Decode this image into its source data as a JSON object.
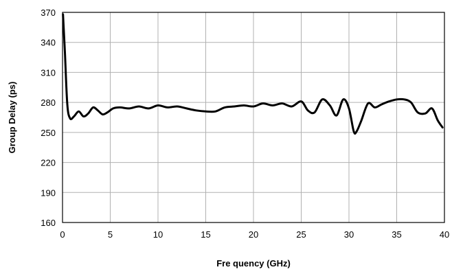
{
  "chart_data": {
    "type": "line",
    "title": "",
    "xlabel": "Fre quency (GHz)",
    "ylabel": "Group Delay (ps)",
    "xlim": [
      0,
      40
    ],
    "ylim": [
      160,
      370
    ],
    "xticks": [
      0,
      5,
      10,
      15,
      20,
      25,
      30,
      35,
      40
    ],
    "yticks": [
      160,
      190,
      220,
      250,
      280,
      310,
      340,
      370
    ],
    "grid": true,
    "legend": "none",
    "line_color": "#000000",
    "series": [
      {
        "x": [
          0.05,
          0.25,
          0.5,
          0.8,
          1.2,
          1.7,
          2.2,
          2.7,
          3.2,
          3.7,
          4.2,
          4.7,
          5.3,
          6,
          7,
          8,
          9,
          10,
          11,
          12,
          13,
          14,
          15,
          16,
          17,
          18,
          19,
          20,
          21,
          22,
          23,
          24,
          25,
          25.7,
          26.4,
          27.2,
          28,
          28.7,
          29.4,
          30,
          30.5,
          30.8,
          31.3,
          32,
          32.7,
          33.4,
          34.2,
          35,
          35.8,
          36.5,
          37.2,
          38,
          38.7,
          39.3,
          39.8
        ],
        "y": [
          368,
          330,
          278,
          264,
          266,
          271,
          266,
          269,
          275,
          272,
          268,
          270,
          274,
          275,
          274,
          276,
          274,
          277,
          275,
          276,
          274,
          272,
          271,
          271,
          275,
          276,
          277,
          276,
          279,
          277,
          279,
          276,
          281,
          272,
          270,
          283,
          277,
          267,
          283,
          274,
          251,
          251,
          262,
          279,
          275,
          278,
          281,
          283,
          283,
          280,
          270,
          269,
          274,
          262,
          255
        ]
      }
    ]
  }
}
